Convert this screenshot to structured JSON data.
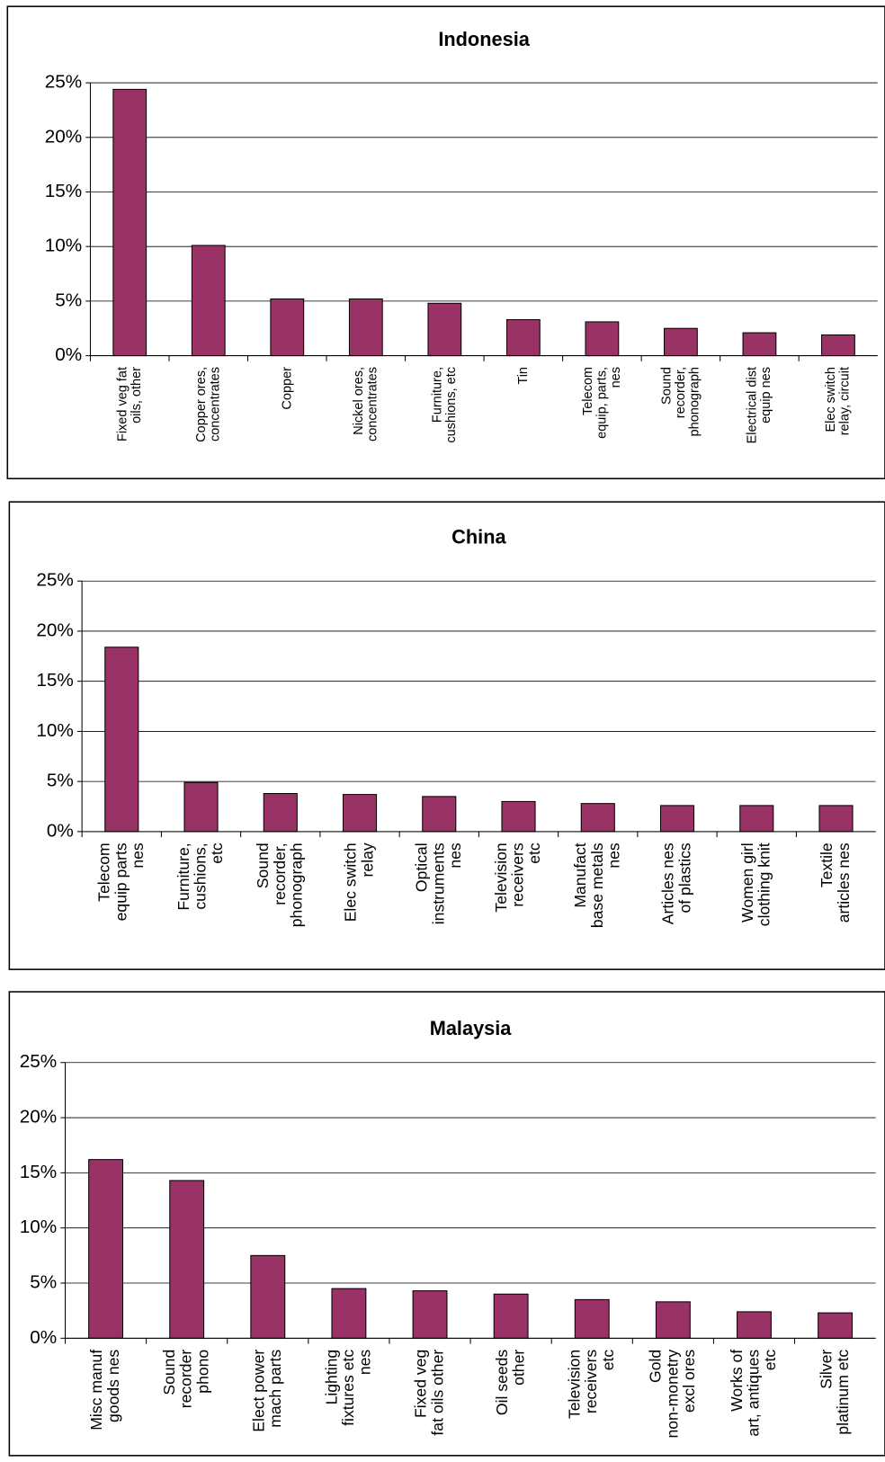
{
  "chart_data": [
    {
      "type": "bar",
      "title": "Indonesia",
      "categories": [
        "Fixed veg fat\noils, other",
        "Copper ores,\nconcentrates",
        "Copper",
        "Nickel ores,\nconcentrates",
        "Furniture,\ncushions, etc",
        "Tin",
        "Telecom\nequip, parts,\nnes",
        "Sound\nrecorder,\nphonograph",
        "Electrical dist\nequip nes",
        "Elec switch\nrelay, circuit"
      ],
      "values": [
        24.4,
        10.1,
        5.2,
        5.2,
        4.8,
        3.3,
        3.1,
        2.5,
        2.1,
        1.9
      ],
      "color": "#993366",
      "ylim": [
        0,
        25
      ],
      "yticks": [
        {
          "value": 0,
          "label": "0%"
        },
        {
          "value": 5,
          "label": "5%"
        },
        {
          "value": 10,
          "label": "10%"
        },
        {
          "value": 15,
          "label": "15%"
        },
        {
          "value": 20,
          "label": "20%"
        },
        {
          "value": 25,
          "label": "25%"
        }
      ],
      "grid": true
    },
    {
      "type": "bar",
      "title": "China",
      "categories": [
        "Telecom\nequip parts\nnes",
        "Furniture,\ncushions,\netc",
        "Sound\nrecorder,\nphonograph",
        "Elec switch\nrelay",
        "Optical\ninstruments\nnes",
        "Television\nreceivers\netc",
        "Manufact\nbase metals\nnes",
        "Articles nes\nof plastics",
        "Women girl\nclothing knit",
        "Textile\narticles nes"
      ],
      "values": [
        18.4,
        4.9,
        3.8,
        3.7,
        3.5,
        3.0,
        2.8,
        2.6,
        2.6,
        2.6
      ],
      "color": "#993366",
      "ylim": [
        0,
        25
      ],
      "yticks": [
        {
          "value": 0,
          "label": "0%"
        },
        {
          "value": 5,
          "label": "5%"
        },
        {
          "value": 10,
          "label": "10%"
        },
        {
          "value": 15,
          "label": "15%"
        },
        {
          "value": 20,
          "label": "20%"
        },
        {
          "value": 25,
          "label": "25%"
        }
      ],
      "grid": true
    },
    {
      "type": "bar",
      "title": "Malaysia",
      "categories": [
        "Misc manuf\ngoods nes",
        "Sound\nrecorder\nphono",
        "Elect power\nmach parts",
        "Lighting\nfixtures etc\nnes",
        "Fixed veg\nfat oils other",
        "Oil seeds\nother",
        "Television\nreceivers\netc",
        "Gold\nnon-monetry\nexcl ores",
        "Works of\nart, antiques\netc",
        "Silver\nplatinum etc"
      ],
      "values": [
        16.2,
        14.3,
        7.5,
        4.5,
        4.3,
        4.0,
        3.5,
        3.3,
        2.4,
        2.3
      ],
      "color": "#993366",
      "ylim": [
        0,
        25
      ],
      "yticks": [
        {
          "value": 0,
          "label": "0%"
        },
        {
          "value": 5,
          "label": "5%"
        },
        {
          "value": 10,
          "label": "10%"
        },
        {
          "value": 15,
          "label": "15%"
        },
        {
          "value": 20,
          "label": "20%"
        },
        {
          "value": 25,
          "label": "25%"
        }
      ],
      "grid": true
    }
  ]
}
